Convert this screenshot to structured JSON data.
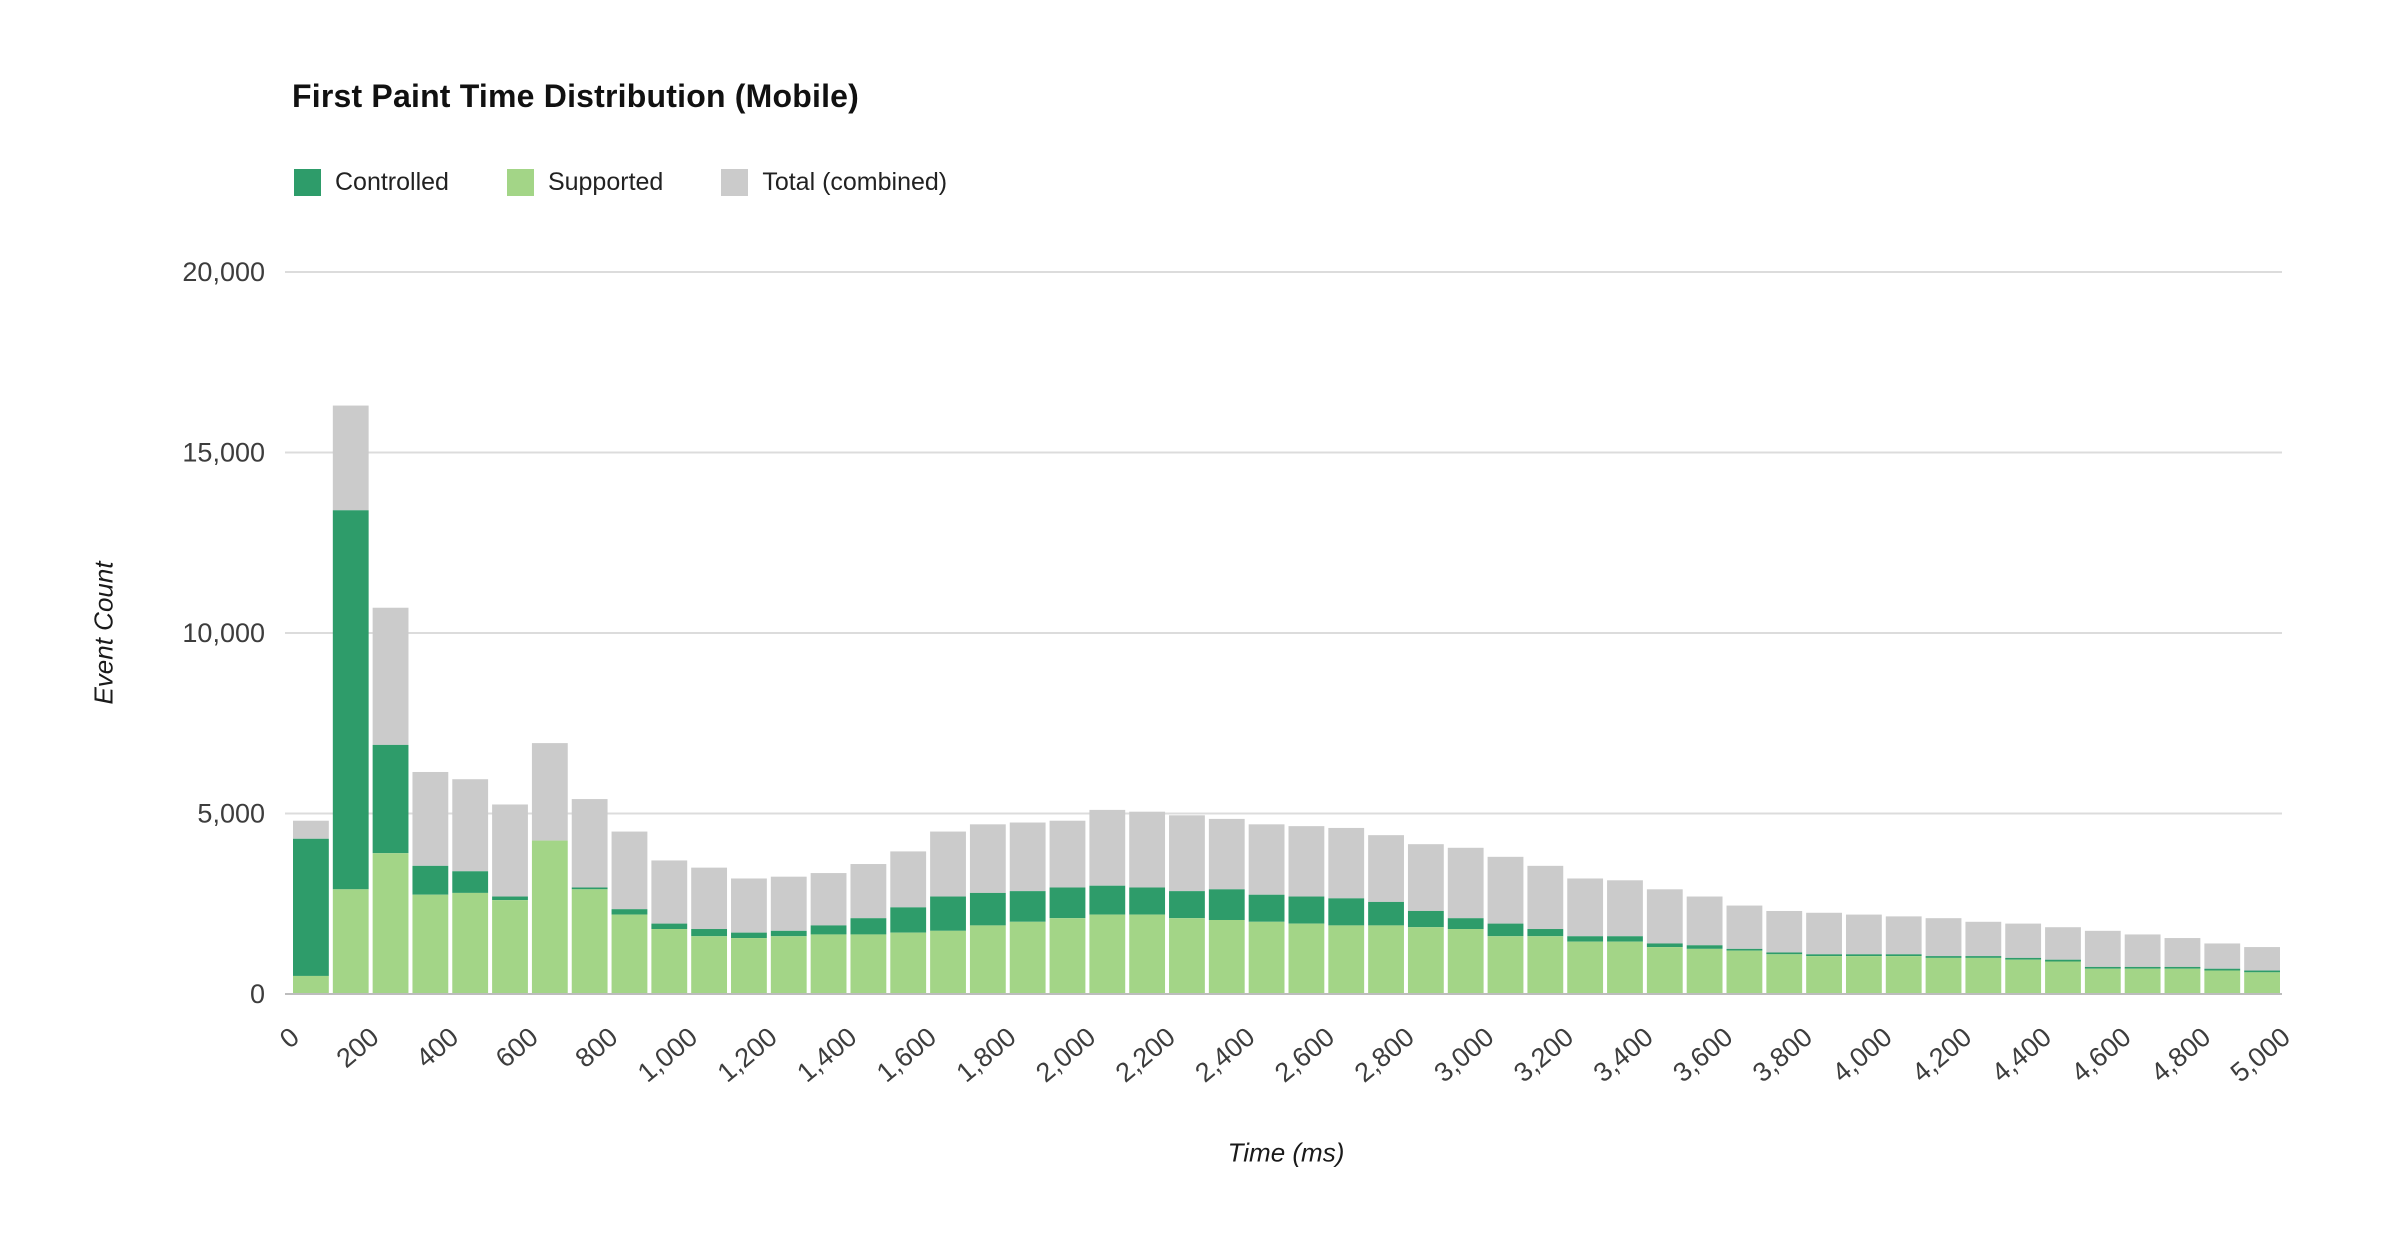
{
  "chart_data": {
    "type": "bar",
    "stacked": true,
    "title": "First Paint Time Distribution (Mobile)",
    "xlabel": "Time (ms)",
    "ylabel": "Event Count",
    "legend_position": "top-left",
    "grid": true,
    "bin_width_ms": 100,
    "xlim": [
      0,
      5000
    ],
    "ylim": [
      0,
      20000
    ],
    "y_ticks": [
      0,
      5000,
      10000,
      15000,
      20000
    ],
    "y_tick_labels": [
      "0",
      "5,000",
      "10,000",
      "15,000",
      "20,000"
    ],
    "x_ticks": [
      0,
      200,
      400,
      600,
      800,
      1000,
      1200,
      1400,
      1600,
      1800,
      2000,
      2200,
      2400,
      2600,
      2800,
      3000,
      3200,
      3400,
      3600,
      3800,
      4000,
      4200,
      4400,
      4600,
      4800,
      5000
    ],
    "x_tick_labels": [
      "0",
      "200",
      "400",
      "600",
      "800",
      "1,000",
      "1,200",
      "1,400",
      "1,600",
      "1,800",
      "2,000",
      "2,200",
      "2,400",
      "2,600",
      "2,800",
      "3,000",
      "3,200",
      "3,400",
      "3,600",
      "3,800",
      "4,000",
      "4,200",
      "4,400",
      "4,600",
      "4,800",
      "5,000"
    ],
    "bin_starts": [
      0,
      100,
      200,
      300,
      400,
      500,
      600,
      700,
      800,
      900,
      1000,
      1100,
      1200,
      1300,
      1400,
      1500,
      1600,
      1700,
      1800,
      1900,
      2000,
      2100,
      2200,
      2300,
      2400,
      2500,
      2600,
      2700,
      2800,
      2900,
      3000,
      3100,
      3200,
      3300,
      3400,
      3500,
      3600,
      3700,
      3800,
      3900,
      4000,
      4100,
      4200,
      4300,
      4400,
      4500,
      4600,
      4700,
      4800,
      4900
    ],
    "series": [
      {
        "name": "Controlled",
        "color": "#2e9c6a",
        "values": [
          3800,
          10500,
          3000,
          800,
          600,
          100,
          0,
          50,
          150,
          150,
          200,
          150,
          150,
          250,
          450,
          700,
          950,
          900,
          850,
          850,
          800,
          750,
          750,
          850,
          750,
          750,
          750,
          650,
          450,
          300,
          350,
          200,
          150,
          150,
          100,
          100,
          50,
          50,
          50,
          50,
          50,
          50,
          50,
          50,
          50,
          50,
          50,
          50,
          50,
          50
        ]
      },
      {
        "name": "Supported",
        "color": "#a3d587",
        "values": [
          500,
          2900,
          3900,
          2750,
          2800,
          2600,
          4250,
          2900,
          2200,
          1800,
          1600,
          1550,
          1600,
          1650,
          1650,
          1700,
          1750,
          1900,
          2000,
          2100,
          2200,
          2200,
          2100,
          2050,
          2000,
          1950,
          1900,
          1900,
          1850,
          1800,
          1600,
          1600,
          1450,
          1450,
          1300,
          1250,
          1200,
          1100,
          1050,
          1050,
          1050,
          1000,
          1000,
          950,
          900,
          700,
          700,
          700,
          650,
          600
        ]
      },
      {
        "name": "Total (combined)",
        "color": "#cbcbcb",
        "values": [
          4800,
          16300,
          10700,
          6150,
          5950,
          5250,
          6950,
          5400,
          4500,
          3700,
          3500,
          3200,
          3250,
          3350,
          3600,
          3950,
          4500,
          4700,
          4750,
          4800,
          5100,
          5050,
          4950,
          4850,
          4700,
          4650,
          4600,
          4400,
          4150,
          4050,
          3800,
          3550,
          3200,
          3150,
          2900,
          2700,
          2450,
          2300,
          2250,
          2200,
          2150,
          2100,
          2000,
          1950,
          1850,
          1750,
          1650,
          1550,
          1400,
          1300
        ]
      }
    ],
    "colors": {
      "gridline": "#dcdcdc",
      "baseline": "#bdbdbd",
      "tick_text": "#3d3d3d",
      "background": "#ffffff"
    }
  }
}
